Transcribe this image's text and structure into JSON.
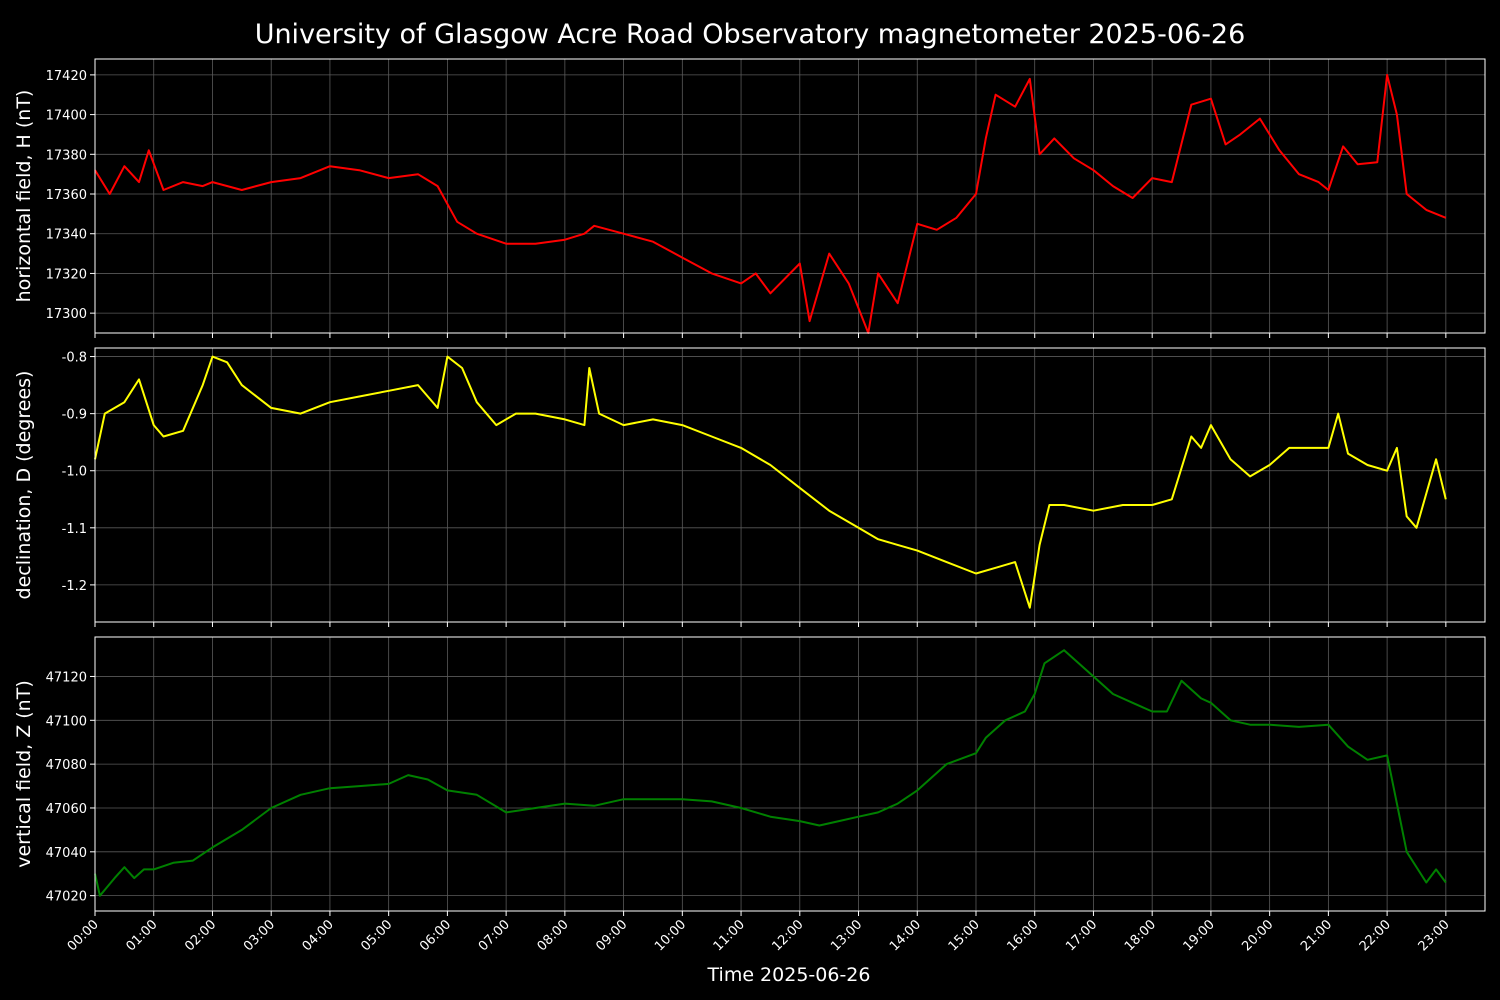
{
  "chart_data": {
    "type": "line",
    "title": "University of Glasgow Acre Road Observatory magnetometer 2025-06-26",
    "xlabel": "Time 2025-06-26",
    "xlim": [
      "00:00",
      "23:40"
    ],
    "x_ticks": [
      "00:00",
      "01:00",
      "02:00",
      "03:00",
      "04:00",
      "05:00",
      "06:00",
      "07:00",
      "08:00",
      "09:00",
      "10:00",
      "11:00",
      "12:00",
      "13:00",
      "14:00",
      "15:00",
      "16:00",
      "17:00",
      "18:00",
      "19:00",
      "20:00",
      "21:00",
      "22:00",
      "23:00"
    ],
    "grid": true,
    "panels": [
      {
        "ylabel": "horizontal field, H (nT)",
        "color": "#ff0000",
        "ylim": [
          17290,
          17428
        ],
        "y_ticks": [
          17300,
          17320,
          17340,
          17360,
          17380,
          17400,
          17420
        ],
        "series": {
          "x": [
            "00:00",
            "00:15",
            "00:30",
            "00:45",
            "00:55",
            "01:10",
            "01:30",
            "01:50",
            "02:00",
            "02:30",
            "03:00",
            "03:30",
            "04:00",
            "04:30",
            "05:00",
            "05:30",
            "05:50",
            "06:10",
            "06:30",
            "07:00",
            "07:30",
            "08:00",
            "08:20",
            "08:30",
            "09:00",
            "09:30",
            "10:00",
            "10:30",
            "11:00",
            "11:15",
            "11:30",
            "12:00",
            "12:10",
            "12:30",
            "12:50",
            "13:10",
            "13:20",
            "13:40",
            "14:00",
            "14:20",
            "14:40",
            "15:00",
            "15:10",
            "15:20",
            "15:40",
            "15:55",
            "16:05",
            "16:20",
            "16:40",
            "17:00",
            "17:20",
            "17:40",
            "18:00",
            "18:20",
            "18:40",
            "19:00",
            "19:15",
            "19:30",
            "19:50",
            "20:10",
            "20:30",
            "20:50",
            "21:00",
            "21:15",
            "21:30",
            "21:50",
            "22:00",
            "22:10",
            "22:20",
            "22:40",
            "23:00"
          ],
          "values": [
            17372,
            17360,
            17374,
            17366,
            17382,
            17362,
            17366,
            17364,
            17366,
            17362,
            17366,
            17368,
            17374,
            17372,
            17368,
            17370,
            17364,
            17346,
            17340,
            17335,
            17335,
            17337,
            17340,
            17344,
            17340,
            17336,
            17328,
            17320,
            17315,
            17320,
            17310,
            17325,
            17296,
            17330,
            17315,
            17290,
            17320,
            17305,
            17345,
            17342,
            17348,
            17360,
            17388,
            17410,
            17404,
            17418,
            17380,
            17388,
            17378,
            17372,
            17364,
            17358,
            17368,
            17366,
            17405,
            17408,
            17385,
            17390,
            17398,
            17382,
            17370,
            17366,
            17362,
            17384,
            17375,
            17376,
            17420,
            17400,
            17360,
            17352,
            17348
          ]
        }
      },
      {
        "ylabel": "declination, D (degrees)",
        "color": "#ffff00",
        "ylim": [
          -1.265,
          -0.785
        ],
        "y_ticks": [
          -1.2,
          -1.1,
          -1.0,
          -0.9,
          -0.8
        ],
        "series": {
          "x": [
            "00:00",
            "00:10",
            "00:30",
            "00:45",
            "01:00",
            "01:10",
            "01:30",
            "01:50",
            "02:00",
            "02:15",
            "02:30",
            "03:00",
            "03:30",
            "04:00",
            "04:30",
            "05:00",
            "05:30",
            "05:50",
            "06:00",
            "06:15",
            "06:30",
            "06:50",
            "07:10",
            "07:30",
            "08:00",
            "08:20",
            "08:25",
            "08:35",
            "09:00",
            "09:30",
            "10:00",
            "10:30",
            "11:00",
            "11:30",
            "12:00",
            "12:30",
            "13:00",
            "13:20",
            "13:40",
            "14:00",
            "14:30",
            "15:00",
            "15:20",
            "15:40",
            "15:55",
            "16:05",
            "16:15",
            "16:30",
            "17:00",
            "17:30",
            "18:00",
            "18:20",
            "18:40",
            "18:50",
            "19:00",
            "19:20",
            "19:40",
            "20:00",
            "20:20",
            "20:40",
            "21:00",
            "21:10",
            "21:20",
            "21:40",
            "22:00",
            "22:10",
            "22:20",
            "22:30",
            "22:50",
            "23:00"
          ],
          "values": [
            -0.98,
            -0.9,
            -0.88,
            -0.84,
            -0.92,
            -0.94,
            -0.93,
            -0.85,
            -0.8,
            -0.81,
            -0.85,
            -0.89,
            -0.9,
            -0.88,
            -0.87,
            -0.86,
            -0.85,
            -0.89,
            -0.8,
            -0.82,
            -0.88,
            -0.92,
            -0.9,
            -0.9,
            -0.91,
            -0.92,
            -0.82,
            -0.9,
            -0.92,
            -0.91,
            -0.92,
            -0.94,
            -0.96,
            -0.99,
            -1.03,
            -1.07,
            -1.1,
            -1.12,
            -1.13,
            -1.14,
            -1.16,
            -1.18,
            -1.17,
            -1.16,
            -1.24,
            -1.13,
            -1.06,
            -1.06,
            -1.07,
            -1.06,
            -1.06,
            -1.05,
            -0.94,
            -0.96,
            -0.92,
            -0.98,
            -1.01,
            -0.99,
            -0.96,
            -0.96,
            -0.96,
            -0.9,
            -0.97,
            -0.99,
            -1.0,
            -0.96,
            -1.08,
            -1.1,
            -0.98,
            -1.05
          ]
        }
      },
      {
        "ylabel": "vertical field, Z (nT)",
        "color": "#008000",
        "ylim": [
          47013,
          47138
        ],
        "y_ticks": [
          47020,
          47040,
          47060,
          47080,
          47100,
          47120
        ],
        "series": {
          "x": [
            "00:00",
            "00:05",
            "00:20",
            "00:30",
            "00:40",
            "00:50",
            "01:00",
            "01:20",
            "01:40",
            "02:00",
            "02:30",
            "03:00",
            "03:30",
            "04:00",
            "04:30",
            "05:00",
            "05:20",
            "05:40",
            "06:00",
            "06:30",
            "07:00",
            "07:30",
            "08:00",
            "08:30",
            "09:00",
            "09:30",
            "10:00",
            "10:30",
            "11:00",
            "11:30",
            "12:00",
            "12:20",
            "12:40",
            "13:00",
            "13:20",
            "13:40",
            "14:00",
            "14:30",
            "15:00",
            "15:10",
            "15:30",
            "15:50",
            "16:00",
            "16:10",
            "16:30",
            "17:00",
            "17:20",
            "17:40",
            "18:00",
            "18:15",
            "18:30",
            "18:50",
            "19:00",
            "19:20",
            "19:40",
            "20:00",
            "20:30",
            "21:00",
            "21:20",
            "21:40",
            "22:00",
            "22:10",
            "22:20",
            "22:40",
            "22:50",
            "23:00"
          ],
          "values": [
            47030,
            47020,
            47028,
            47033,
            47028,
            47032,
            47032,
            47035,
            47036,
            47042,
            47050,
            47060,
            47066,
            47069,
            47070,
            47071,
            47075,
            47073,
            47068,
            47066,
            47058,
            47060,
            47062,
            47061,
            47064,
            47064,
            47064,
            47063,
            47060,
            47056,
            47054,
            47052,
            47054,
            47056,
            47058,
            47062,
            47068,
            47080,
            47085,
            47092,
            47100,
            47104,
            47112,
            47126,
            47132,
            47120,
            47112,
            47108,
            47104,
            47104,
            47118,
            47110,
            47108,
            47100,
            47098,
            47098,
            47097,
            47098,
            47088,
            47082,
            47084,
            47062,
            47040,
            47026,
            47032,
            47026
          ]
        }
      }
    ]
  }
}
